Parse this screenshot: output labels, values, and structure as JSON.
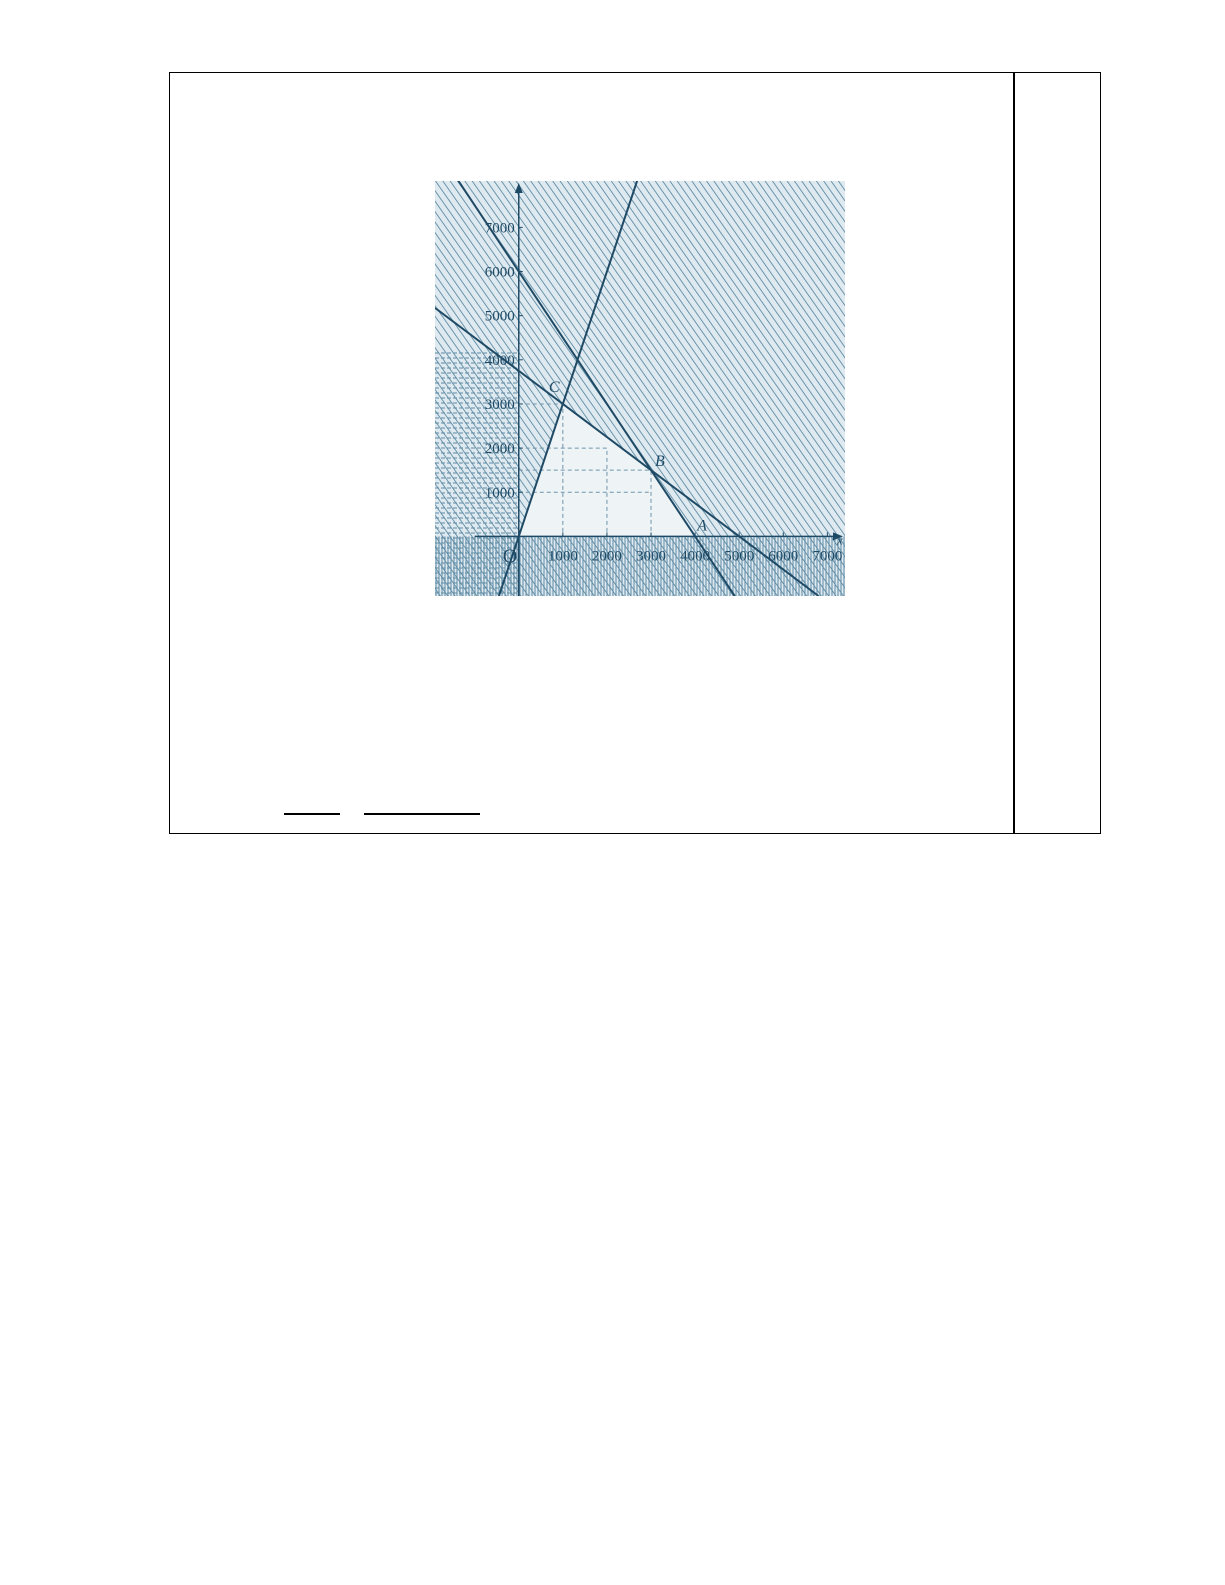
{
  "colors": {
    "line": "#1f4a66",
    "hatch": "#4f7f9a",
    "background": "#dfeaf0",
    "feasible": "#eef3f6"
  },
  "chart_data": {
    "type": "line",
    "title": "",
    "xlabel": "x",
    "ylabel": "",
    "xlim": [
      -1900,
      7400
    ],
    "ylim": [
      -1350,
      8050
    ],
    "grid": false,
    "x_ticks": [
      "1000",
      "2000",
      "3000",
      "4000",
      "5000",
      "6000",
      "7000"
    ],
    "y_ticks": [
      "1000",
      "2000",
      "3000",
      "4000",
      "5000",
      "6000",
      "7000"
    ],
    "origin_label": "O",
    "series": [
      {
        "equation": "3x + 2y = 12000",
        "points": [
          [
            0,
            6000
          ],
          [
            4000,
            0
          ]
        ]
      },
      {
        "equation": "3x + 4y = 15000",
        "points": [
          [
            0,
            3750
          ],
          [
            5000,
            0
          ]
        ]
      },
      {
        "equation": "y = 3x",
        "points": [
          [
            0,
            0
          ],
          [
            1000,
            3000
          ]
        ]
      }
    ],
    "vertices": [
      {
        "label": "A",
        "x": 4000,
        "y": 0
      },
      {
        "label": "B",
        "x": 3000,
        "y": 1500
      },
      {
        "label": "C",
        "x": 1000,
        "y": 3000
      }
    ]
  }
}
